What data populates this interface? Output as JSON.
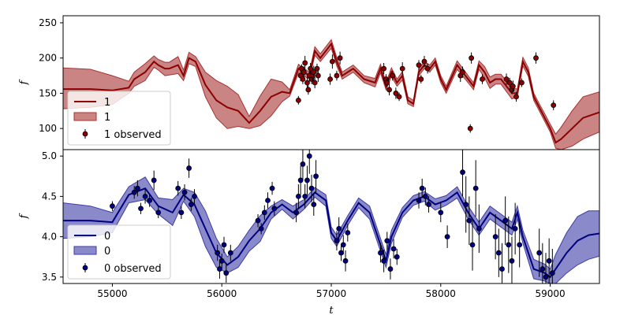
{
  "chart_data": [
    {
      "type": "line",
      "panel": "top",
      "xlabel": "",
      "ylabel": "f",
      "xlim": [
        54550,
        59450
      ],
      "ylim": [
        70,
        260
      ],
      "yticks": [
        100,
        150,
        200,
        250
      ],
      "legend_placement": "lower-left",
      "colors": {
        "line": "#8b0000",
        "band": "#a83232",
        "points": "#8b0000"
      },
      "series": [
        {
          "name": "1",
          "kind": "mean",
          "x": [
            54550,
            54800,
            55000,
            55150,
            55200,
            55300,
            55380,
            55420,
            55480,
            55520,
            55600,
            55650,
            55700,
            55760,
            55850,
            55950,
            56050,
            56150,
            56250,
            56350,
            56450,
            56550,
            56620,
            56700,
            56800,
            56850,
            56900,
            57000,
            57050,
            57100,
            57150,
            57200,
            57300,
            57400,
            57450,
            57500,
            57550,
            57600,
            57650,
            57700,
            57750,
            57800,
            57850,
            57900,
            57950,
            58000,
            58050,
            58150,
            58250,
            58300,
            58350,
            58400,
            58450,
            58500,
            58550,
            58650,
            58700,
            58750,
            58800,
            58850,
            58900,
            58950,
            59000,
            59050,
            59100,
            59200,
            59300,
            59450
          ],
          "y": [
            156,
            156,
            154,
            158,
            170,
            180,
            195,
            190,
            185,
            185,
            190,
            175,
            200,
            195,
            162,
            140,
            130,
            125,
            108,
            125,
            145,
            152,
            150,
            185,
            175,
            210,
            200,
            220,
            195,
            175,
            180,
            185,
            170,
            165,
            185,
            160,
            180,
            165,
            175,
            140,
            135,
            180,
            190,
            185,
            195,
            170,
            155,
            190,
            170,
            160,
            190,
            180,
            165,
            170,
            170,
            150,
            150,
            195,
            180,
            145,
            130,
            115,
            100,
            80,
            85,
            100,
            115,
            123
          ]
        },
        {
          "name": "1",
          "kind": "band",
          "x": [
            54550,
            54800,
            55000,
            55150,
            55200,
            55300,
            55380,
            55420,
            55480,
            55520,
            55600,
            55650,
            55700,
            55760,
            55850,
            55950,
            56050,
            56150,
            56250,
            56350,
            56450,
            56550,
            56620,
            56700,
            56800,
            56850,
            56900,
            57000,
            57050,
            57100,
            57150,
            57200,
            57300,
            57400,
            57450,
            57500,
            57550,
            57600,
            57650,
            57700,
            57750,
            57800,
            57850,
            57900,
            57950,
            58000,
            58050,
            58150,
            58250,
            58300,
            58350,
            58400,
            58450,
            58500,
            58550,
            58650,
            58700,
            58750,
            58800,
            58850,
            58900,
            58950,
            59000,
            59050,
            59100,
            59200,
            59300,
            59450
          ],
          "lower": [
            128,
            130,
            134,
            150,
            160,
            168,
            187,
            183,
            175,
            176,
            178,
            168,
            192,
            188,
            145,
            115,
            100,
            103,
            100,
            104,
            118,
            138,
            146,
            179,
            170,
            204,
            195,
            214,
            189,
            170,
            175,
            180,
            165,
            159,
            179,
            155,
            174,
            160,
            169,
            135,
            131,
            175,
            185,
            180,
            190,
            165,
            150,
            184,
            165,
            155,
            184,
            172,
            157,
            163,
            163,
            142,
            145,
            189,
            174,
            140,
            125,
            110,
            95,
            72,
            70,
            75,
            85,
            95
          ],
          "upper": [
            186,
            184,
            175,
            167,
            180,
            192,
            203,
            198,
            194,
            194,
            202,
            183,
            208,
            202,
            180,
            168,
            160,
            148,
            117,
            146,
            170,
            166,
            155,
            191,
            180,
            216,
            206,
            226,
            201,
            180,
            185,
            190,
            175,
            171,
            191,
            165,
            186,
            170,
            181,
            145,
            140,
            185,
            195,
            190,
            200,
            175,
            160,
            196,
            175,
            165,
            196,
            188,
            173,
            177,
            177,
            158,
            156,
            201,
            186,
            150,
            135,
            121,
            106,
            92,
            102,
            125,
            145,
            152
          ]
        },
        {
          "name": "1 observed",
          "kind": "scatter",
          "x": [
            56700,
            56720,
            56730,
            56740,
            56750,
            56760,
            56780,
            56790,
            56800,
            56810,
            56820,
            56830,
            56840,
            56850,
            56870,
            56880,
            56990,
            57010,
            57050,
            57080,
            57480,
            57500,
            57510,
            57530,
            57560,
            57590,
            57620,
            57650,
            57800,
            57820,
            57850,
            57880,
            58180,
            58200,
            58270,
            58280,
            58380,
            58600,
            58630,
            58650,
            58660,
            58690,
            58740,
            58870,
            59030
          ],
          "y": [
            140,
            175,
            185,
            170,
            180,
            193,
            165,
            155,
            175,
            185,
            170,
            175,
            180,
            165,
            185,
            175,
            170,
            195,
            175,
            200,
            185,
            170,
            165,
            155,
            175,
            150,
            145,
            185,
            190,
            170,
            195,
            185,
            175,
            180,
            100,
            200,
            170,
            170,
            165,
            155,
            160,
            145,
            165,
            200,
            133
          ],
          "err": [
            6,
            8,
            6,
            7,
            8,
            10,
            8,
            7,
            9,
            8,
            7,
            8,
            9,
            8,
            7,
            9,
            8,
            10,
            7,
            9,
            8,
            7,
            6,
            8,
            7,
            8,
            6,
            9,
            7,
            6,
            8,
            7,
            9,
            8,
            6,
            8,
            7,
            8,
            7,
            6,
            8,
            7,
            6,
            8,
            7
          ]
        }
      ],
      "legend": [
        "1",
        "1",
        "1 observed"
      ]
    },
    {
      "type": "line",
      "panel": "bottom",
      "xlabel": "t",
      "ylabel": "f",
      "xlim": [
        54550,
        59450
      ],
      "ylim": [
        3.42,
        5.08
      ],
      "yticks": [
        3.5,
        4.0,
        4.5,
        5.0
      ],
      "xticks": [
        55000,
        56000,
        57000,
        58000,
        59000
      ],
      "legend_placement": "lower-left",
      "colors": {
        "line": "#000080",
        "band": "#3c3ca8",
        "points": "#000080"
      },
      "series": [
        {
          "name": "0",
          "kind": "mean",
          "x": [
            54550,
            54800,
            55000,
            55150,
            55300,
            55420,
            55550,
            55650,
            55750,
            55850,
            55950,
            56050,
            56150,
            56250,
            56350,
            56450,
            56550,
            56650,
            56750,
            56850,
            56950,
            57000,
            57050,
            57150,
            57250,
            57350,
            57450,
            57500,
            57550,
            57650,
            57750,
            57850,
            57950,
            58050,
            58150,
            58250,
            58350,
            58450,
            58550,
            58650,
            58700,
            58750,
            58850,
            58950,
            59000,
            59050,
            59150,
            59250,
            59350,
            59450
          ],
          "y": [
            4.2,
            4.2,
            4.18,
            4.52,
            4.6,
            4.38,
            4.3,
            4.52,
            4.4,
            4.1,
            3.8,
            3.65,
            3.75,
            3.95,
            4.1,
            4.3,
            4.4,
            4.3,
            4.4,
            4.55,
            4.45,
            4.05,
            3.95,
            4.2,
            4.42,
            4.3,
            3.9,
            3.7,
            4.0,
            4.3,
            4.45,
            4.5,
            4.4,
            4.45,
            4.55,
            4.3,
            4.1,
            4.3,
            4.2,
            4.1,
            4.3,
            4.0,
            3.6,
            3.55,
            3.5,
            3.6,
            3.8,
            3.95,
            4.02,
            4.04
          ]
        },
        {
          "name": "0",
          "kind": "band",
          "x": [
            54550,
            54800,
            55000,
            55150,
            55300,
            55420,
            55550,
            55650,
            55750,
            55850,
            55950,
            56050,
            56150,
            56250,
            56350,
            56450,
            56550,
            56650,
            56750,
            56850,
            56950,
            57000,
            57050,
            57150,
            57250,
            57350,
            57450,
            57500,
            57550,
            57650,
            57750,
            57850,
            57950,
            58050,
            58150,
            58250,
            58350,
            58450,
            58550,
            58650,
            58700,
            58750,
            58850,
            58950,
            59000,
            59050,
            59150,
            59250,
            59350,
            59450
          ],
          "lower": [
            3.98,
            4.0,
            4.05,
            4.42,
            4.46,
            4.28,
            4.14,
            4.44,
            4.25,
            3.88,
            3.62,
            3.55,
            3.62,
            3.82,
            3.94,
            4.22,
            4.34,
            4.22,
            4.34,
            4.49,
            4.38,
            3.98,
            3.88,
            4.14,
            4.36,
            4.22,
            3.82,
            3.62,
            3.92,
            4.24,
            4.39,
            4.44,
            4.33,
            4.39,
            4.48,
            4.22,
            4.02,
            4.22,
            4.12,
            4.02,
            4.22,
            3.92,
            3.48,
            3.45,
            3.42,
            3.42,
            3.55,
            3.65,
            3.72,
            3.76
          ],
          "upper": [
            4.42,
            4.38,
            4.3,
            4.62,
            4.74,
            4.48,
            4.46,
            4.6,
            4.55,
            4.32,
            3.98,
            3.75,
            3.88,
            4.08,
            4.26,
            4.38,
            4.46,
            4.38,
            4.46,
            4.61,
            4.52,
            4.12,
            4.02,
            4.26,
            4.48,
            4.38,
            3.98,
            3.78,
            4.08,
            4.36,
            4.51,
            4.56,
            4.47,
            4.51,
            4.62,
            4.38,
            4.18,
            4.38,
            4.28,
            4.18,
            4.38,
            4.08,
            3.72,
            3.66,
            3.6,
            3.78,
            4.05,
            4.25,
            4.32,
            4.32
          ]
        },
        {
          "name": "0 observed",
          "kind": "scatter",
          "x": [
            55000,
            55200,
            55230,
            55260,
            55300,
            55340,
            55380,
            55420,
            55600,
            55630,
            55660,
            55700,
            55720,
            55750,
            55960,
            55980,
            56000,
            56020,
            56040,
            56080,
            56330,
            56360,
            56390,
            56420,
            56460,
            56480,
            56680,
            56700,
            56720,
            56740,
            56760,
            56780,
            56800,
            56820,
            56840,
            56860,
            57050,
            57070,
            57090,
            57110,
            57130,
            57150,
            57450,
            57480,
            57510,
            57540,
            57570,
            57600,
            57800,
            57830,
            57860,
            57890,
            58000,
            58060,
            58200,
            58230,
            58260,
            58290,
            58320,
            58350,
            58500,
            58530,
            58560,
            58590,
            58620,
            58650,
            58680,
            58720,
            58900,
            58930,
            58960,
            58990,
            59020
          ],
          "y": [
            4.38,
            4.55,
            4.6,
            4.35,
            4.5,
            4.45,
            4.7,
            4.3,
            4.6,
            4.3,
            4.55,
            4.85,
            4.4,
            4.5,
            3.8,
            3.6,
            3.7,
            3.9,
            3.55,
            3.8,
            4.2,
            4.1,
            4.3,
            4.45,
            4.6,
            4.35,
            4.3,
            4.5,
            4.7,
            4.9,
            4.5,
            4.7,
            5.0,
            4.6,
            4.4,
            4.75,
            3.95,
            4.1,
            3.8,
            3.9,
            3.7,
            4.05,
            3.8,
            3.7,
            3.95,
            3.6,
            3.85,
            3.75,
            4.45,
            4.6,
            4.5,
            4.4,
            4.3,
            4.0,
            4.8,
            4.4,
            4.2,
            3.9,
            4.6,
            4.1,
            4.0,
            3.8,
            3.6,
            4.2,
            3.9,
            3.7,
            4.1,
            3.9,
            3.8,
            3.6,
            3.5,
            3.7,
            3.55
          ],
          "err": [
            0.06,
            0.08,
            0.1,
            0.07,
            0.09,
            0.08,
            0.12,
            0.07,
            0.09,
            0.08,
            0.1,
            0.12,
            0.08,
            0.09,
            0.1,
            0.12,
            0.09,
            0.1,
            0.12,
            0.1,
            0.08,
            0.07,
            0.09,
            0.1,
            0.08,
            0.09,
            0.12,
            0.15,
            0.18,
            0.2,
            0.15,
            0.18,
            0.22,
            0.17,
            0.14,
            0.2,
            0.12,
            0.14,
            0.1,
            0.12,
            0.13,
            0.11,
            0.12,
            0.14,
            0.11,
            0.13,
            0.12,
            0.1,
            0.1,
            0.12,
            0.11,
            0.1,
            0.12,
            0.14,
            0.3,
            0.35,
            0.3,
            0.32,
            0.35,
            0.3,
            0.28,
            0.3,
            0.32,
            0.3,
            0.35,
            0.3,
            0.32,
            0.28,
            0.3,
            0.32,
            0.3,
            0.28,
            0.3
          ]
        }
      ],
      "legend": [
        "0",
        "0",
        "0 observed"
      ]
    }
  ]
}
